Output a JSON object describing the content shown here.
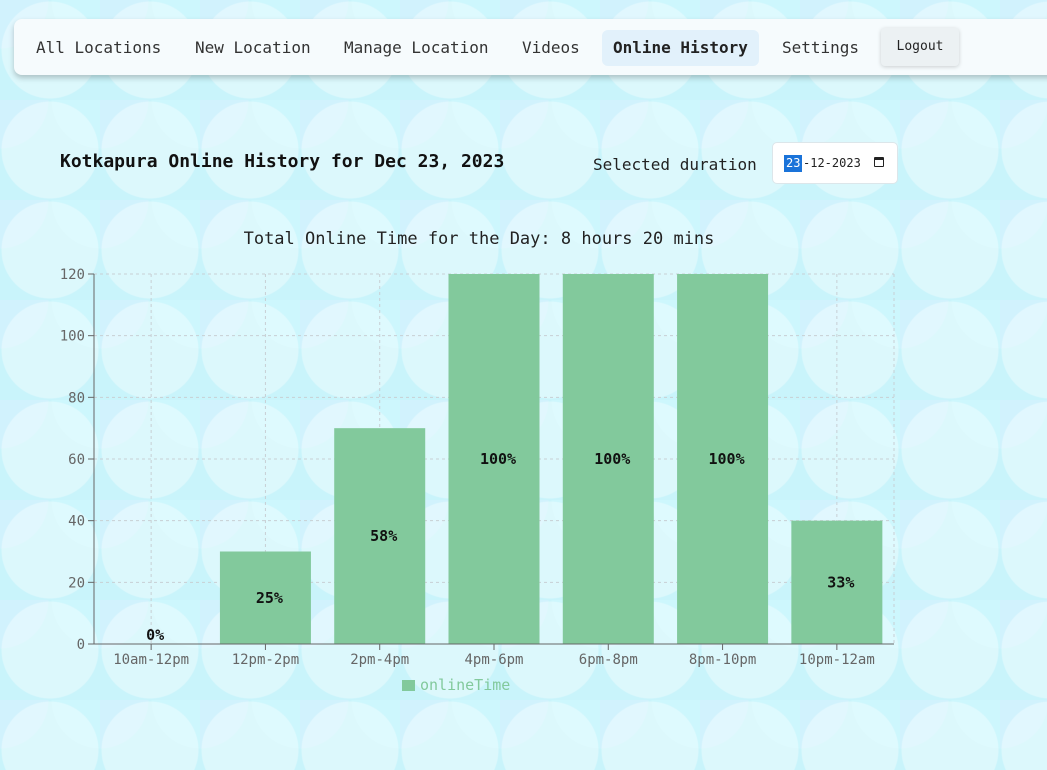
{
  "nav": {
    "items": [
      {
        "label": "All Locations",
        "active": false
      },
      {
        "label": "New Location",
        "active": false
      },
      {
        "label": "Manage Location",
        "active": false
      },
      {
        "label": "Videos",
        "active": false
      },
      {
        "label": "Online History",
        "active": true
      },
      {
        "label": "Settings",
        "active": false
      }
    ],
    "logout_label": "Logout"
  },
  "page": {
    "title": "Kotkapura Online History for Dec 23, 2023",
    "duration_label": "Selected duration",
    "date": {
      "day": "23",
      "rest": "-12-2023"
    }
  },
  "colors": {
    "bar": "#82c99c",
    "grid": "#c8cfd4",
    "axis": "#666666",
    "legend_text": "#82c99c"
  },
  "chart_data": {
    "type": "bar",
    "title": "Total Online Time for the Day: 8 hours 20 mins",
    "categories": [
      "10am-12pm",
      "12pm-2pm",
      "2pm-4pm",
      "4pm-6pm",
      "6pm-8pm",
      "8pm-10pm",
      "10pm-12am"
    ],
    "series": [
      {
        "name": "onlineTime",
        "values": [
          0,
          30,
          70,
          120,
          120,
          120,
          40
        ]
      }
    ],
    "data_labels": [
      "0%",
      "25%",
      "58%",
      "100%",
      "100%",
      "100%",
      "33%"
    ],
    "ylim": [
      0,
      120
    ],
    "yticks": [
      0,
      20,
      40,
      60,
      80,
      100,
      120
    ],
    "grid": true,
    "legend": "bottom"
  }
}
